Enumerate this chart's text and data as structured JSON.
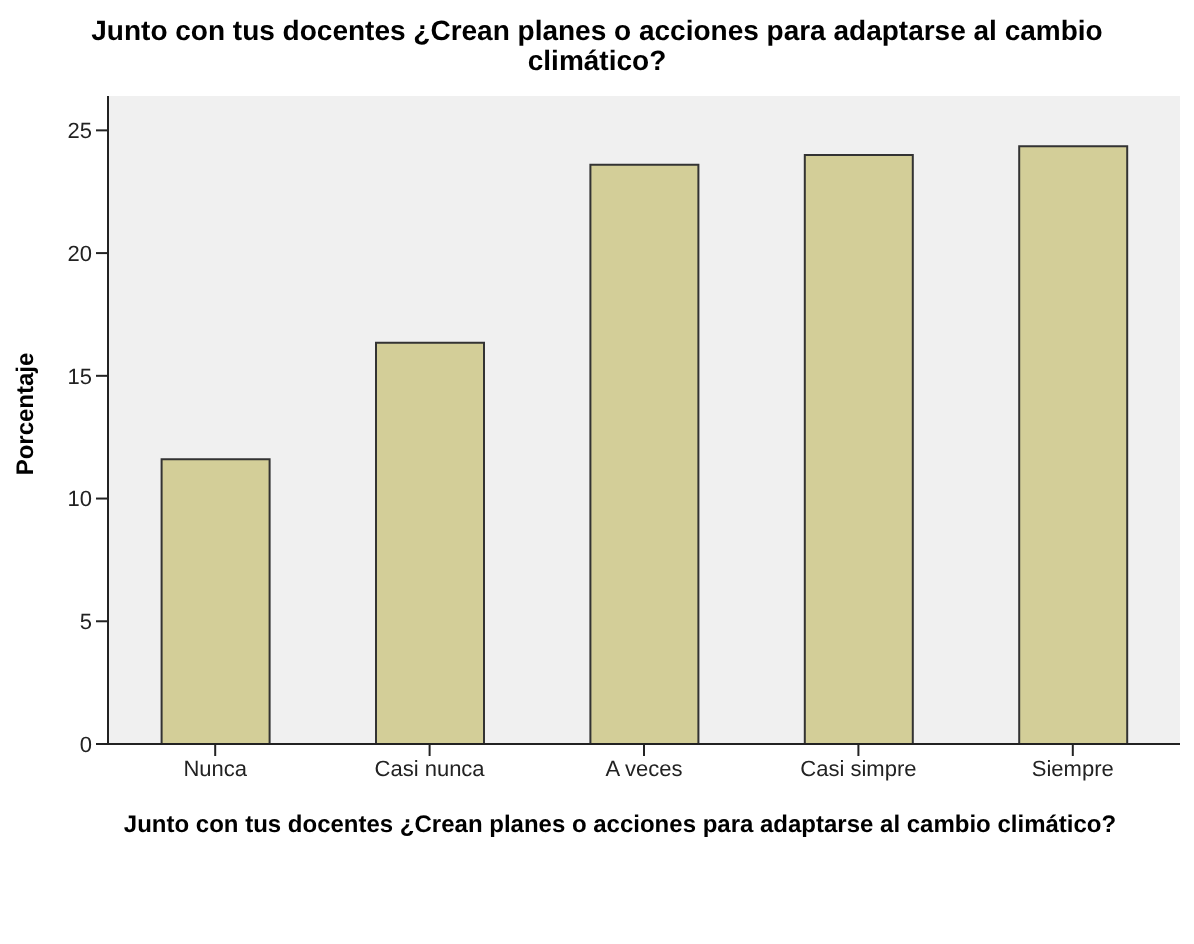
{
  "chart_data": {
    "type": "bar",
    "title": "Junto con tus docentes ¿Crean planes o acciones para adaptarse al cambio climático?",
    "xlabel": "Junto con tus docentes ¿Crean planes o acciones para adaptarse al cambio climático?",
    "ylabel": "Porcentaje",
    "categories": [
      "Nunca",
      "Casi nunca",
      "A veces",
      "Casi simpre",
      "Siempre"
    ],
    "values": [
      11.6,
      16.35,
      23.6,
      24.0,
      24.35
    ],
    "color": "#d3ce98",
    "ylim": [
      0,
      26.4
    ],
    "yticks": [
      0,
      5,
      10,
      15,
      20,
      25
    ],
    "grid": false
  }
}
